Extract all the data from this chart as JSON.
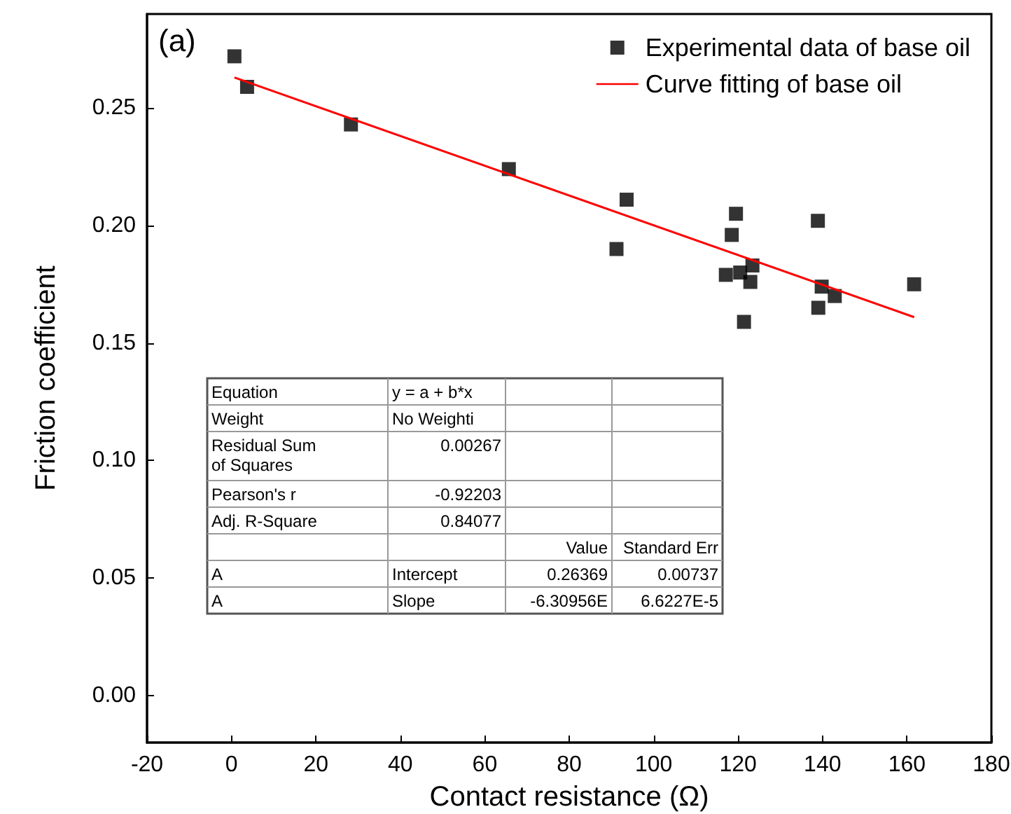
{
  "chart_data": {
    "type": "scatter",
    "xlabel": "Contact resistance (Ω)",
    "ylabel": "Friction coefficient",
    "xlim": [
      -20,
      180
    ],
    "xticks": [
      -20,
      0,
      20,
      40,
      60,
      80,
      100,
      120,
      140,
      160,
      180
    ],
    "ylim": [
      -0.02,
      0.29
    ],
    "yticks": [
      {
        "value": 0,
        "label": "0.00"
      },
      0.05,
      {
        "value": 0.1,
        "label": "0.10"
      },
      0.15,
      {
        "value": 0.2,
        "label": "0.20"
      },
      0.25
    ],
    "legend": "top right",
    "grid": false,
    "series": [
      {
        "name": "Experimental data of base oil",
        "marker": "square",
        "color": "#000000",
        "x": [
          0.7,
          3.7,
          28.3,
          65.7,
          93.6,
          91.2,
          119.5,
          118.5,
          117.1,
          120.5,
          123.4,
          122.9,
          121.4,
          138.9,
          139.8,
          142.9,
          139.0,
          161.7
        ],
        "values": [
          0.272,
          0.259,
          0.243,
          0.224,
          0.211,
          0.19,
          0.205,
          0.196,
          0.179,
          0.18,
          0.183,
          0.176,
          0.159,
          0.202,
          0.174,
          0.17,
          0.165,
          0.175
        ]
      },
      {
        "name": "Curve fitting of base oil",
        "type": "line",
        "marker": "none",
        "line_style": "solid",
        "color": "#ff0000",
        "x": [
          0.7,
          161.7
        ],
        "values": [
          0.263,
          0.161
        ]
      }
    ],
    "annotations": [
      "(a)",
      "Equation",
      "y = a + b*x",
      "Weight",
      "No Weighti",
      "Residual Sum of Squares",
      "0.00267",
      "Pearson's r",
      "-0.92203",
      "Adj. R-Square",
      "0.84077",
      "Value",
      "Standard Err",
      "A",
      "Intercept",
      "0.26369",
      "0.00737",
      "A",
      "Slope",
      "-6.30956E",
      "6.6227E-5"
    ]
  }
}
